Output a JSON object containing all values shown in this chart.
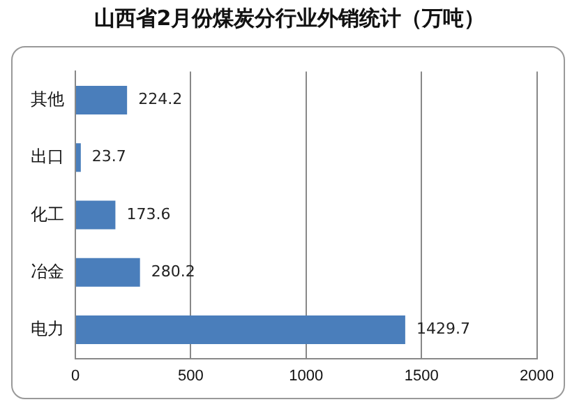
{
  "chart_data": {
    "type": "bar",
    "orientation": "horizontal",
    "title": "山西省2月份煤炭分行业外销统计（万吨）",
    "categories": [
      "其他",
      "出口",
      "化工",
      "冶金",
      "电力"
    ],
    "values": [
      224.2,
      23.7,
      173.6,
      280.2,
      1429.7
    ],
    "color": "#4a7ebb",
    "xlim": [
      0,
      2000
    ],
    "xticks": [
      0,
      500,
      1000,
      1500,
      2000
    ],
    "grid": "x",
    "data_labels": true,
    "legend": false
  }
}
